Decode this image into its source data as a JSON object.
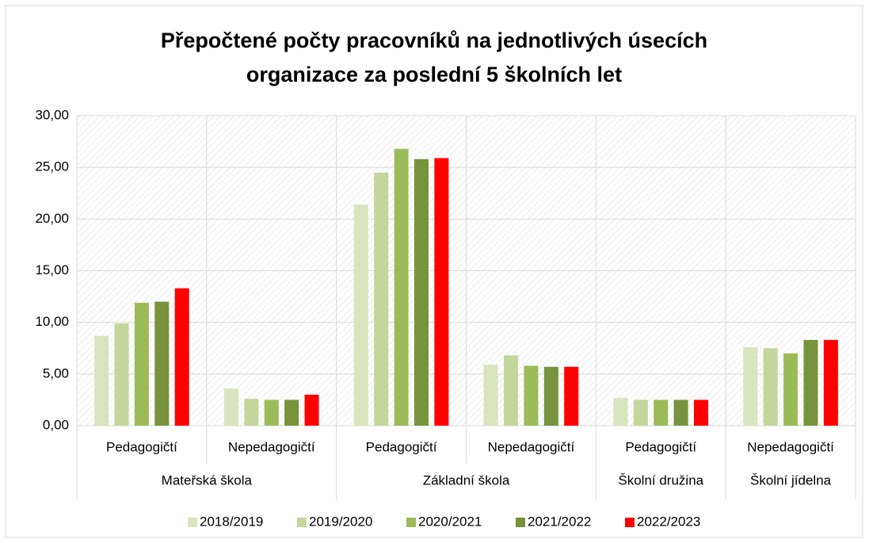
{
  "chart_data": {
    "type": "bar",
    "title": "Přepočtené počty pracovníků na jednotlivých úsecích organizace za poslední 5 školních let",
    "category_groups": [
      {
        "label": "Mateřská škola",
        "categories": [
          "Pedagogičtí",
          "Nepedagogičtí"
        ]
      },
      {
        "label": "Základní škola",
        "categories": [
          "Pedagogičtí",
          "Nepedagogičtí"
        ]
      },
      {
        "label": "Školní družina",
        "categories": [
          "Pedagogičtí"
        ]
      },
      {
        "label": "Školní jídelna",
        "categories": [
          "Nepedagogičtí"
        ]
      }
    ],
    "series": [
      {
        "name": "2018/2019",
        "color": "#d7e4bd",
        "values": [
          8.7,
          3.6,
          21.4,
          5.9,
          2.7,
          7.6
        ]
      },
      {
        "name": "2019/2020",
        "color": "#c3d69b",
        "values": [
          9.9,
          2.6,
          24.5,
          6.8,
          2.5,
          7.5
        ]
      },
      {
        "name": "2020/2021",
        "color": "#9bbb59",
        "values": [
          11.9,
          2.5,
          26.8,
          5.8,
          2.5,
          7.0
        ]
      },
      {
        "name": "2021/2022",
        "color": "#77933c",
        "values": [
          12.0,
          2.5,
          25.8,
          5.7,
          2.5,
          8.3
        ]
      },
      {
        "name": "2022/2023",
        "color": "#ff0000",
        "values": [
          13.3,
          3.0,
          25.9,
          5.7,
          2.5,
          8.3
        ]
      }
    ],
    "ylim": [
      0,
      30
    ],
    "yticks": [
      {
        "value": 0,
        "label": "0,00"
      },
      {
        "value": 5,
        "label": "5,00"
      },
      {
        "value": 10,
        "label": "10,00"
      },
      {
        "value": 15,
        "label": "15,00"
      },
      {
        "value": 20,
        "label": "20,00"
      },
      {
        "value": 25,
        "label": "25,00"
      },
      {
        "value": 30,
        "label": "30,00"
      }
    ],
    "grid": true,
    "legend": "bottom"
  }
}
